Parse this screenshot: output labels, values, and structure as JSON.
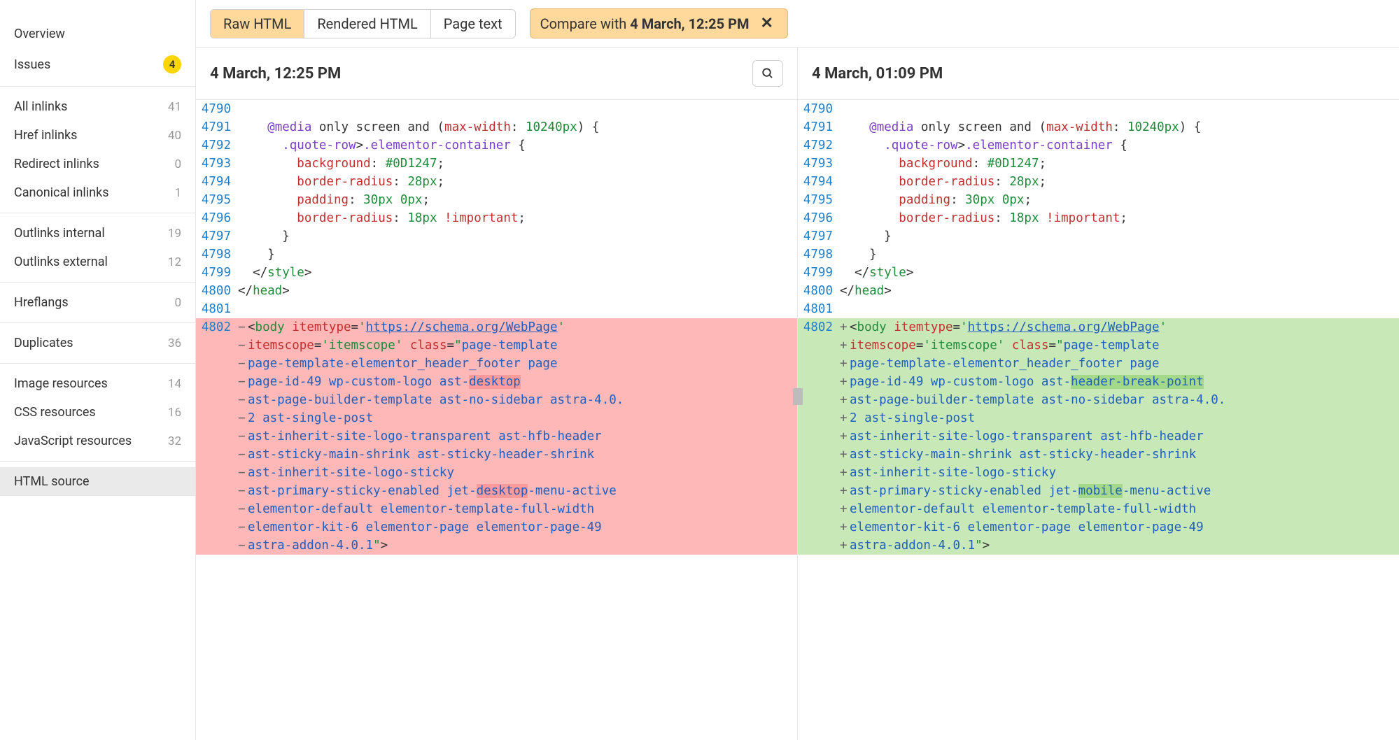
{
  "sidebar": {
    "groups": [
      {
        "items": [
          {
            "label": "Overview",
            "count": "",
            "badge": ""
          },
          {
            "label": "Issues",
            "count": "",
            "badge": "4"
          }
        ]
      },
      {
        "items": [
          {
            "label": "All inlinks",
            "count": "41",
            "badge": ""
          },
          {
            "label": "Href inlinks",
            "count": "40",
            "badge": ""
          },
          {
            "label": "Redirect inlinks",
            "count": "0",
            "badge": ""
          },
          {
            "label": "Canonical inlinks",
            "count": "1",
            "badge": ""
          }
        ]
      },
      {
        "items": [
          {
            "label": "Outlinks internal",
            "count": "19",
            "badge": ""
          },
          {
            "label": "Outlinks external",
            "count": "12",
            "badge": ""
          }
        ]
      },
      {
        "items": [
          {
            "label": "Hreflangs",
            "count": "0",
            "badge": ""
          }
        ]
      },
      {
        "items": [
          {
            "label": "Duplicates",
            "count": "36",
            "badge": ""
          }
        ]
      },
      {
        "items": [
          {
            "label": "Image resources",
            "count": "14",
            "badge": ""
          },
          {
            "label": "CSS resources",
            "count": "16",
            "badge": ""
          },
          {
            "label": "JavaScript resources",
            "count": "32",
            "badge": ""
          }
        ]
      },
      {
        "items": [
          {
            "label": "HTML source",
            "count": "",
            "badge": "",
            "active": true
          }
        ]
      }
    ]
  },
  "toolbar": {
    "tabs": [
      {
        "label": "Raw HTML",
        "active": true
      },
      {
        "label": "Rendered HTML",
        "active": false
      },
      {
        "label": "Page text",
        "active": false
      }
    ],
    "compare_prefix": "Compare with ",
    "compare_bold": "4 March, 12:25 PM"
  },
  "headers": {
    "left": "4 March, 12:25 PM",
    "right": "4 March, 01:09 PM"
  },
  "code": {
    "common_lines": [
      {
        "n": "4790",
        "html": ""
      },
      {
        "n": "4791",
        "html": "    <span class='tok-sel'>@media</span> only screen and (<span class='tok-prop'>max-width</span>: <span class='tok-num'>10240px</span>) {"
      },
      {
        "n": "4792",
        "html": "      <span class='tok-sel'>.quote-row</span>><span class='tok-sel'>.elementor-container</span> {"
      },
      {
        "n": "4793",
        "html": "        <span class='tok-prop'>background</span>: <span class='tok-num'>#0D1247</span>;"
      },
      {
        "n": "4794",
        "html": "        <span class='tok-prop'>border-radius</span>: <span class='tok-num'>28px</span>;"
      },
      {
        "n": "4795",
        "html": "        <span class='tok-prop'>padding</span>: <span class='tok-num'>30px</span> <span class='tok-num'>0px</span>;"
      },
      {
        "n": "4796",
        "html": "        <span class='tok-prop'>border-radius</span>: <span class='tok-num'>18px</span> <span class='tok-bang'>!important</span>;"
      },
      {
        "n": "4797",
        "html": "      }"
      },
      {
        "n": "4798",
        "html": "    }"
      },
      {
        "n": "4799",
        "html": "  &lt;/<span class='tok-tag'>style</span>&gt;"
      },
      {
        "n": "4800",
        "html": "&lt;/<span class='tok-tag'>head</span>&gt;"
      },
      {
        "n": "4801",
        "html": ""
      }
    ],
    "left_diff": [
      {
        "n": "4802",
        "sign": "−",
        "html": "&lt;<span class='tok-tag'>body</span> <span class='tok-attr'>itemtype</span>=<span class='tok-val'>'</span><span class='tok-link'>https://schema.org/WebPage</span><span class='tok-val'>'</span>"
      },
      {
        "n": "",
        "sign": "−",
        "html": "<span class='tok-attr'>itemscope</span>=<span class='tok-val'>'itemscope'</span> <span class='tok-attr'>class</span>=<span class='tok-val'>\"</span><span class='tok-class'>page-template</span>"
      },
      {
        "n": "",
        "sign": "−",
        "html": "<span class='tok-class'>page-template-elementor_header_footer page</span>"
      },
      {
        "n": "",
        "sign": "−",
        "html": "<span class='tok-class'>page-id-49 wp-custom-logo ast-</span><span class='hl tok-class'>desktop</span>"
      },
      {
        "n": "",
        "sign": "−",
        "html": "<span class='tok-class'>ast-page-builder-template ast-no-sidebar astra-4.0.</span>"
      },
      {
        "n": "",
        "sign": "−",
        "html": "<span class='tok-class'>2 ast-single-post</span>"
      },
      {
        "n": "",
        "sign": "−",
        "html": "<span class='tok-class'>ast-inherit-site-logo-transparent ast-hfb-header</span>"
      },
      {
        "n": "",
        "sign": "−",
        "html": "<span class='tok-class'>ast-sticky-main-shrink ast-sticky-header-shrink</span>"
      },
      {
        "n": "",
        "sign": "−",
        "html": "<span class='tok-class'>ast-inherit-site-logo-sticky</span>"
      },
      {
        "n": "",
        "sign": "−",
        "html": "<span class='tok-class'>ast-primary-sticky-enabled jet-</span><span class='hl tok-class'>desktop</span><span class='tok-class'>-menu-active</span>"
      },
      {
        "n": "",
        "sign": "−",
        "html": "<span class='tok-class'>elementor-default elementor-template-full-width</span>"
      },
      {
        "n": "",
        "sign": "−",
        "html": "<span class='tok-class'>elementor-kit-6 elementor-page elementor-page-49</span>"
      },
      {
        "n": "",
        "sign": "−",
        "html": "<span class='tok-class'>astra-addon-4.0.1</span><span class='tok-val'>\"</span>&gt;"
      }
    ],
    "right_diff": [
      {
        "n": "4802",
        "sign": "+",
        "html": "&lt;<span class='tok-tag'>body</span> <span class='tok-attr'>itemtype</span>=<span class='tok-val'>'</span><span class='tok-link'>https://schema.org/WebPage</span><span class='tok-val'>'</span>"
      },
      {
        "n": "",
        "sign": "+",
        "html": "<span class='tok-attr'>itemscope</span>=<span class='tok-val'>'itemscope'</span> <span class='tok-attr'>class</span>=<span class='tok-val'>\"</span><span class='tok-class'>page-template</span>"
      },
      {
        "n": "",
        "sign": "+",
        "html": "<span class='tok-class'>page-template-elementor_header_footer page</span>"
      },
      {
        "n": "",
        "sign": "+",
        "html": "<span class='tok-class'>page-id-49 wp-custom-logo ast-</span><span class='hl-add tok-class'>header-break-point</span>"
      },
      {
        "n": "",
        "sign": "+",
        "html": "<span class='tok-class'>ast-page-builder-template ast-no-sidebar astra-4.0.</span>"
      },
      {
        "n": "",
        "sign": "+",
        "html": "<span class='tok-class'>2 ast-single-post</span>"
      },
      {
        "n": "",
        "sign": "+",
        "html": "<span class='tok-class'>ast-inherit-site-logo-transparent ast-hfb-header</span>"
      },
      {
        "n": "",
        "sign": "+",
        "html": "<span class='tok-class'>ast-sticky-main-shrink ast-sticky-header-shrink</span>"
      },
      {
        "n": "",
        "sign": "+",
        "html": "<span class='tok-class'>ast-inherit-site-logo-sticky</span>"
      },
      {
        "n": "",
        "sign": "+",
        "html": "<span class='tok-class'>ast-primary-sticky-enabled jet-</span><span class='hl-add tok-class'>mobile</span><span class='tok-class'>-menu-active</span>"
      },
      {
        "n": "",
        "sign": "+",
        "html": "<span class='tok-class'>elementor-default elementor-template-full-width</span>"
      },
      {
        "n": "",
        "sign": "+",
        "html": "<span class='tok-class'>elementor-kit-6 elementor-page elementor-page-49</span>"
      },
      {
        "n": "",
        "sign": "+",
        "html": "<span class='tok-class'>astra-addon-4.0.1</span><span class='tok-val'>\"</span>&gt;"
      }
    ]
  }
}
